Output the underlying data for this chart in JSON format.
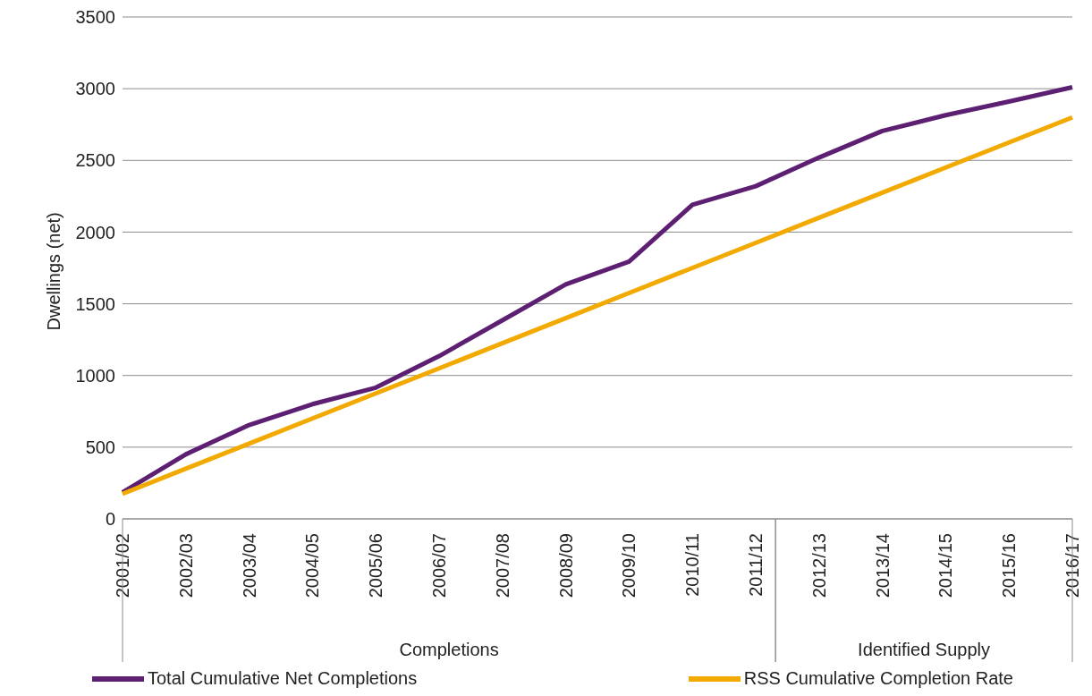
{
  "chart_data": {
    "type": "line",
    "ylabel": "Dwellings (net)",
    "categories": [
      "2001/02",
      "2002/03",
      "2003/04",
      "2004/05",
      "2005/06",
      "2006/07",
      "2007/08",
      "2008/09",
      "2009/10",
      "2010/11",
      "2011/12",
      "2012/13",
      "2013/14",
      "2014/15",
      "2015/16",
      "2016/17"
    ],
    "series": [
      {
        "name": "Total Cumulative Net Completions",
        "color": "#5c1f72",
        "values": [
          185,
          450,
          655,
          800,
          915,
          1135,
          1385,
          1635,
          1795,
          2190,
          2320,
          2520,
          2705,
          2815,
          2910,
          3010
        ]
      },
      {
        "name": "RSS Cumulative Completion Rate",
        "color": "#f2a900",
        "values": [
          175,
          350,
          525,
          700,
          875,
          1050,
          1225,
          1400,
          1575,
          1750,
          1925,
          2100,
          2275,
          2450,
          2625,
          2800
        ]
      }
    ],
    "ylim": [
      0,
      3500
    ],
    "yticks": [
      0,
      500,
      1000,
      1500,
      2000,
      2500,
      3000,
      3500
    ],
    "grid": "y",
    "legend": "bottom",
    "annotations": [
      "Completions",
      "Identified Supply"
    ]
  }
}
